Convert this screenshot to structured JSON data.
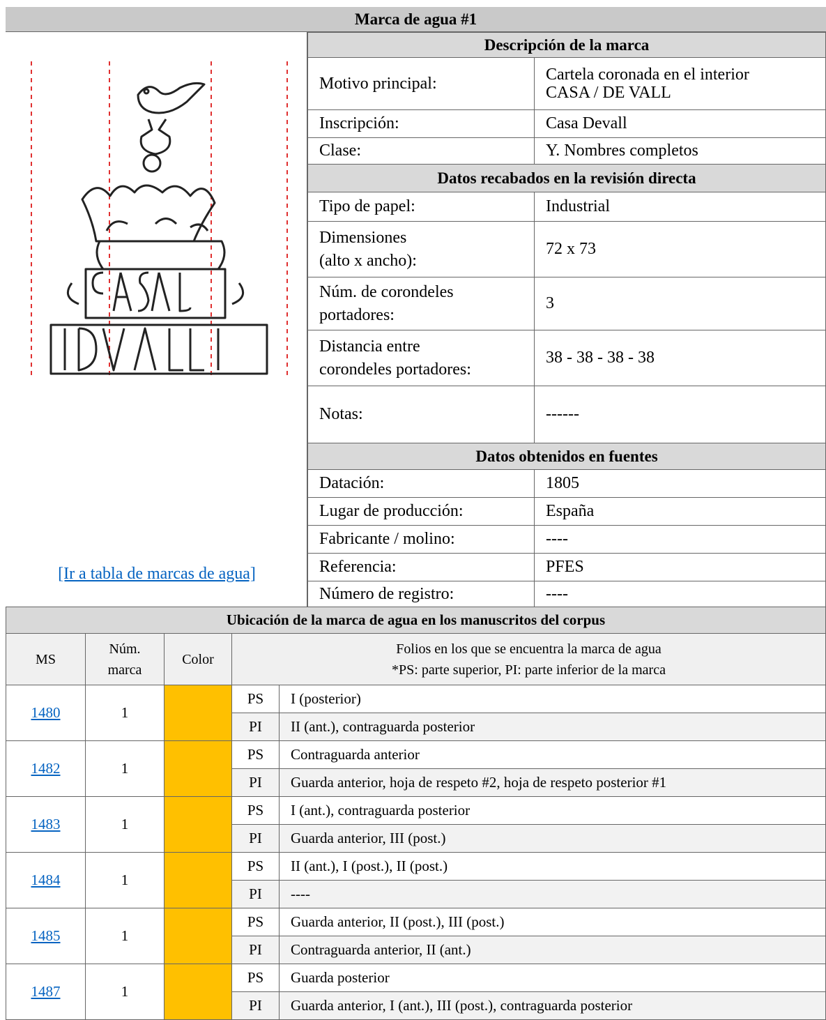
{
  "title": "Marca de agua #1",
  "link": "[Ir a tabla de marcas de agua]",
  "sections": [
    {
      "heading": "Descripción de la marca",
      "rows": [
        [
          "Motivo principal:",
          "Cartela coronada en el interior\nCASA / DE VALL"
        ],
        [
          "Inscripción:",
          "Casa Devall"
        ],
        [
          "Clase:",
          "Y. Nombres completos"
        ]
      ]
    },
    {
      "heading": "Datos recabados en la revisión directa",
      "rows": [
        [
          "Tipo de papel:",
          "Industrial"
        ],
        [
          "Dimensiones\n(alto x ancho):",
          "72 x 73"
        ],
        [
          "Núm. de corondeles\nportadores:",
          "3"
        ],
        [
          "Distancia entre\ncorondeles portadores:",
          "38 - 38 - 38 - 38"
        ],
        [
          "Notas:",
          "------"
        ]
      ]
    },
    {
      "heading": "Datos obtenidos en fuentes",
      "rows": [
        [
          "Datación:",
          "1805"
        ],
        [
          "Lugar de producción:",
          "España"
        ],
        [
          "Fabricante / molino:",
          "----"
        ],
        [
          "Referencia:",
          "PFES"
        ],
        [
          "Número de registro:",
          "----"
        ]
      ]
    }
  ],
  "location": {
    "heading": "Ubicación de la marca de agua en los manuscritos del corpus",
    "columns": [
      "MS",
      "Núm.\nmarca",
      "Color",
      "Folios en los que se encuentra la marca de agua\n*PS: parte superior, PI: parte inferior de la marca"
    ],
    "rows": [
      {
        "ms": "1480",
        "mark": "1",
        "color": "#ffc000",
        "parts": [
          [
            "PS",
            "I (posterior)"
          ],
          [
            "PI",
            "II (ant.), contraguarda posterior"
          ]
        ]
      },
      {
        "ms": "1482",
        "mark": "1",
        "color": "#ffc000",
        "parts": [
          [
            "PS",
            "Contraguarda anterior"
          ],
          [
            "PI",
            "Guarda anterior, hoja de respeto #2, hoja de respeto posterior #1"
          ]
        ]
      },
      {
        "ms": "1483",
        "mark": "1",
        "color": "#ffc000",
        "parts": [
          [
            "PS",
            "I (ant.), contraguarda posterior"
          ],
          [
            "PI",
            "Guarda anterior, III (post.)"
          ]
        ]
      },
      {
        "ms": "1484",
        "mark": "1",
        "color": "#ffc000",
        "parts": [
          [
            "PS",
            "II (ant.), I (post.), II (post.)"
          ],
          [
            "PI",
            "----"
          ]
        ]
      },
      {
        "ms": "1485",
        "mark": "1",
        "color": "#ffc000",
        "parts": [
          [
            "PS",
            "Guarda anterior, II (post.), III (post.)"
          ],
          [
            "PI",
            "Contraguarda anterior, II (ant.)"
          ]
        ]
      },
      {
        "ms": "1487",
        "mark": "1",
        "color": "#ffc000",
        "parts": [
          [
            "PS",
            "Guarda posterior"
          ],
          [
            "PI",
            "Guarda anterior, I (ant.), III (post.), contraguarda posterior"
          ]
        ]
      }
    ]
  }
}
